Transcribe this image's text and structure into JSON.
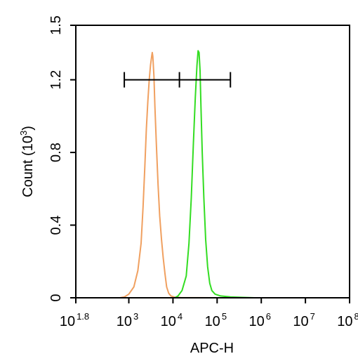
{
  "chart_data": {
    "type": "line",
    "title": "",
    "xlabel": "APC-H",
    "ylabel": "Count",
    "ylabel_unit_base": "10",
    "ylabel_unit_exp": "3",
    "x_scale": "log",
    "xlim": [
      63,
      100000000
    ],
    "ylim": [
      0,
      1.5
    ],
    "x_ticks": [
      {
        "value": 63,
        "base": "10",
        "exp": "1.8"
      },
      {
        "value": 1000,
        "base": "10",
        "exp": "3"
      },
      {
        "value": 10000,
        "base": "10",
        "exp": "4"
      },
      {
        "value": 100000,
        "base": "10",
        "exp": "5"
      },
      {
        "value": 1000000,
        "base": "10",
        "exp": "6"
      },
      {
        "value": 10000000,
        "base": "10",
        "exp": "7"
      },
      {
        "value": 100000000,
        "base": "10",
        "exp": "8"
      }
    ],
    "y_ticks": [
      {
        "value": 0,
        "label": "0"
      },
      {
        "value": 0.4,
        "label": "0.4"
      },
      {
        "value": 0.8,
        "label": "0.8"
      },
      {
        "value": 1.2,
        "label": "1.2"
      },
      {
        "value": 1.5,
        "label": "1.5"
      }
    ],
    "grid": false,
    "series": [
      {
        "color": "#f0a060",
        "x": [
          630,
          800,
          1000,
          1300,
          1600,
          1900,
          2100,
          2300,
          2500,
          2700,
          2900,
          3100,
          3300,
          3400,
          3500,
          3700,
          3900,
          4200,
          4600,
          5000,
          5500,
          6000,
          6600,
          7200,
          8000,
          9000,
          11000,
          15000,
          100000
        ],
        "y": [
          0.0,
          0.005,
          0.02,
          0.06,
          0.15,
          0.3,
          0.5,
          0.72,
          0.93,
          1.08,
          1.2,
          1.28,
          1.33,
          1.35,
          1.33,
          1.22,
          1.05,
          0.85,
          0.62,
          0.45,
          0.32,
          0.22,
          0.13,
          0.06,
          0.025,
          0.01,
          0.003,
          0.001,
          0.0
        ]
      },
      {
        "color": "#33dd22",
        "x": [
          11000,
          13000,
          16000,
          20000,
          23000,
          26000,
          29000,
          32000,
          35000,
          37000,
          39000,
          41000,
          43000,
          46000,
          50000,
          55000,
          61000,
          68000,
          76000,
          90000,
          120000,
          200000,
          400000,
          700000
        ],
        "y": [
          0.0,
          0.01,
          0.04,
          0.12,
          0.3,
          0.55,
          0.85,
          1.1,
          1.28,
          1.36,
          1.35,
          1.25,
          1.05,
          0.8,
          0.55,
          0.32,
          0.17,
          0.08,
          0.04,
          0.02,
          0.01,
          0.005,
          0.002,
          0.0
        ]
      }
    ],
    "annotations": [
      {
        "type": "range-bar",
        "y": 1.2,
        "x": [
          790,
          14000,
          200000
        ]
      }
    ]
  }
}
